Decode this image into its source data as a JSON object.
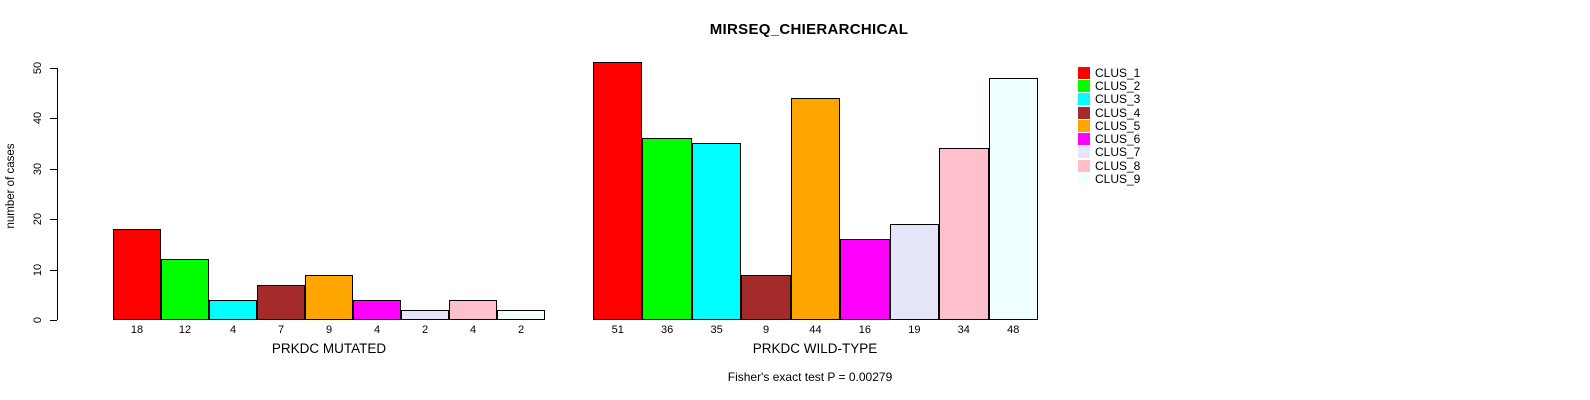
{
  "chart_data": {
    "type": "bar",
    "title": "MIRSEQ_CHIERARCHICAL",
    "ylabel": "number of cases",
    "ylim": [
      0,
      50
    ],
    "yticks": [
      0,
      10,
      20,
      30,
      40,
      50
    ],
    "grid": false,
    "legend_position": "right",
    "clusters": [
      {
        "label": "CLUS_1",
        "color": "#FF0000"
      },
      {
        "label": "CLUS_2",
        "color": "#00FF00"
      },
      {
        "label": "CLUS_3",
        "color": "#00FFFF"
      },
      {
        "label": "CLUS_4",
        "color": "#A52A2A"
      },
      {
        "label": "CLUS_5",
        "color": "#FFA500"
      },
      {
        "label": "CLUS_6",
        "color": "#FF00FF"
      },
      {
        "label": "CLUS_7",
        "color": "#E6E6FA"
      },
      {
        "label": "CLUS_8",
        "color": "#FFC0CB"
      },
      {
        "label": "CLUS_9",
        "color": "#F0FFFF"
      }
    ],
    "panels": [
      {
        "xlabel": "PRKDC MUTATED",
        "values": [
          18,
          12,
          4,
          7,
          9,
          4,
          2,
          4,
          2
        ]
      },
      {
        "xlabel": "PRKDC WILD-TYPE",
        "values": [
          51,
          36,
          35,
          9,
          44,
          16,
          19,
          34,
          48
        ]
      }
    ],
    "caption": "Fisher's exact test P = 0.00279"
  }
}
